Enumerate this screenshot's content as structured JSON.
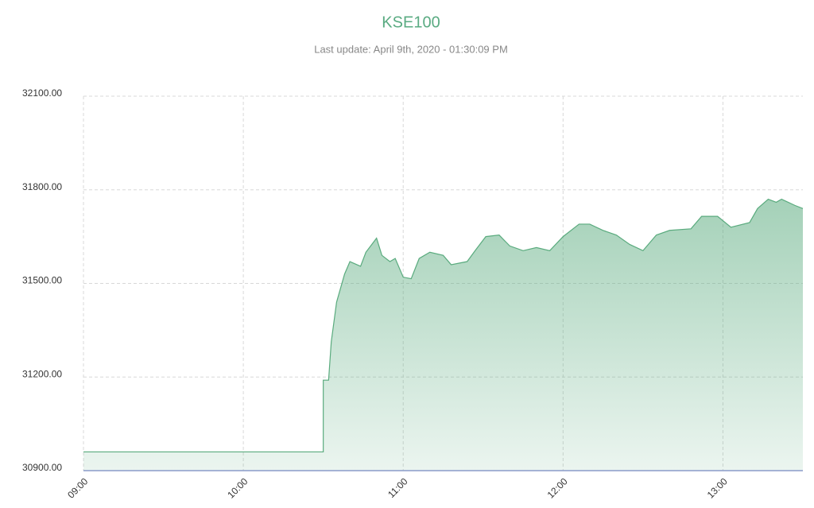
{
  "chart_data": {
    "type": "area",
    "title": "KSE100",
    "subtitle": "Last update: April 9th, 2020 - 01:30:09 PM",
    "x": [
      "09:00",
      "10:30",
      "10:30",
      "10:32",
      "10:33",
      "10:35",
      "10:38",
      "10:40",
      "10:44",
      "10:46",
      "10:50",
      "10:52",
      "10:55",
      "10:57",
      "11:00",
      "11:03",
      "11:06",
      "11:10",
      "11:15",
      "11:18",
      "11:24",
      "11:27",
      "11:31",
      "11:36",
      "11:40",
      "11:45",
      "11:50",
      "11:55",
      "12:00",
      "12:06",
      "12:10",
      "12:15",
      "12:20",
      "12:25",
      "12:30",
      "12:35",
      "12:40",
      "12:48",
      "12:52",
      "12:58",
      "13:03",
      "13:10",
      "13:13",
      "13:17",
      "13:20",
      "13:22",
      "13:27",
      "13:30"
    ],
    "series": [
      {
        "color": "#5aab7e",
        "values": [
          30960,
          30960,
          31190,
          31190,
          31313,
          31440,
          31530,
          31570,
          31555,
          31600,
          31645,
          31590,
          31570,
          31580,
          31520,
          31515,
          31580,
          31600,
          31590,
          31560,
          31570,
          31605,
          31650,
          31655,
          31620,
          31605,
          31615,
          31605,
          31650,
          31690,
          31690,
          31670,
          31655,
          31625,
          31605,
          31655,
          31670,
          31675,
          31715,
          31715,
          31680,
          31695,
          31740,
          31770,
          31760,
          31770,
          31750,
          31740
        ]
      }
    ],
    "xlim": [
      "09:00",
      "13:30"
    ],
    "xticks": [
      "09:00",
      "10:00",
      "11:00",
      "12:00",
      "13:00"
    ],
    "ylim": [
      30900,
      32100
    ],
    "yticks": [
      {
        "value": 30900,
        "label": "30900.00"
      },
      {
        "value": 31200,
        "label": "31200.00"
      },
      {
        "value": 31500,
        "label": "31500.00"
      },
      {
        "value": 31800,
        "label": "31800.00"
      },
      {
        "value": 32100,
        "label": "32100.00"
      }
    ],
    "grid": true
  }
}
